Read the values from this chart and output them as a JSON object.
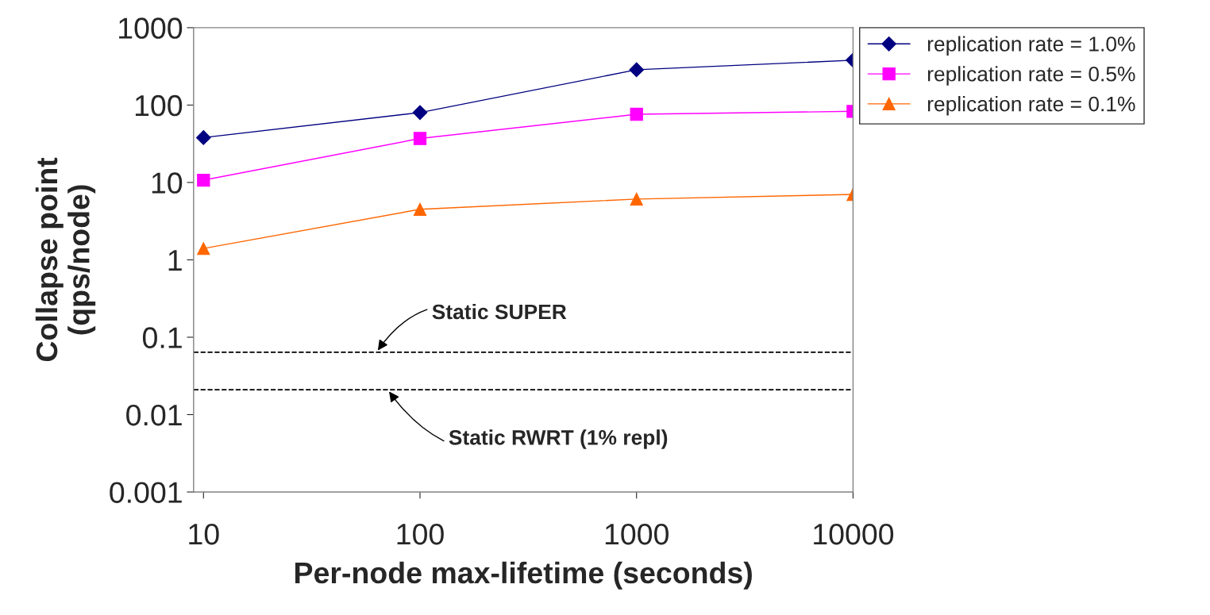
{
  "chart_data": {
    "type": "line",
    "xlabel": "Per-node max-lifetime (seconds)",
    "ylabel": "Collapse point\n(qps/node)",
    "x": [
      10,
      100,
      1000,
      10000
    ],
    "log": "xy",
    "xlim": [
      9,
      10000
    ],
    "xticks": [
      10,
      100,
      1000,
      10000
    ],
    "ylim": [
      0.001,
      1000
    ],
    "yticks": [
      0.001,
      0.01,
      0.1,
      1,
      10,
      100,
      1000
    ],
    "grid": false,
    "legend": "right",
    "line_style": "solid",
    "series": [
      {
        "name": "replication rate = 1.0%",
        "color": "#000080",
        "marker": "diamond",
        "values": [
          38,
          80,
          286,
          380
        ]
      },
      {
        "name": "replication rate = 0.5%",
        "color": "#ff00ff",
        "marker": "square",
        "values": [
          10.7,
          37,
          76,
          83
        ]
      },
      {
        "name": "replication rate = 0.1%",
        "color": "#ff6600",
        "marker": "triangle",
        "values": [
          1.4,
          4.5,
          6.1,
          7.0
        ]
      }
    ],
    "ref_lines": [
      {
        "axis": "y",
        "value": 0.064,
        "color": "#000000",
        "line_style": "dashed"
      },
      {
        "axis": "y",
        "value": 0.021,
        "color": "#000000",
        "line_style": "dashed"
      }
    ],
    "annotations": [
      {
        "text": "Static SUPER",
        "x": 63,
        "y": 0.064
      },
      {
        "text": "Static RWRT (1% repl)",
        "x": 71,
        "y": 0.021
      }
    ]
  }
}
